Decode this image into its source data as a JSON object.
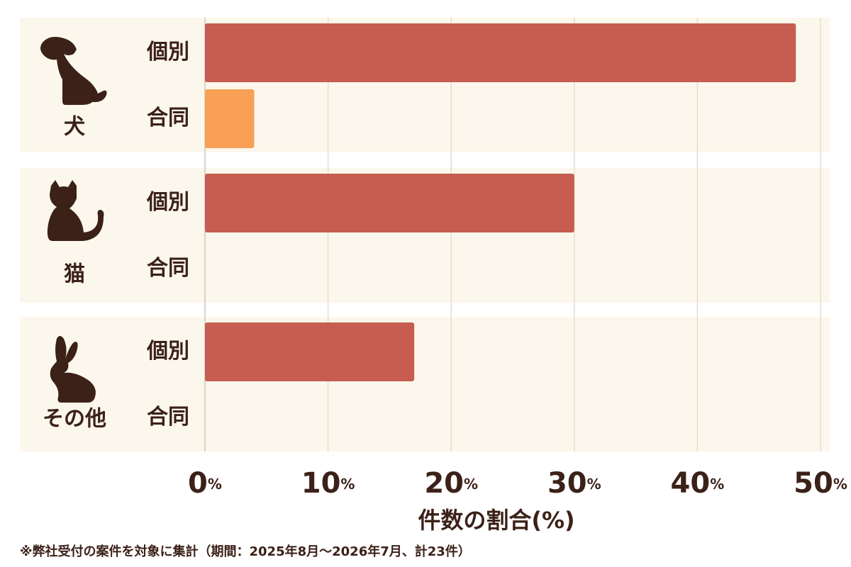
{
  "chart_data": {
    "type": "bar",
    "orientation": "horizontal",
    "categories": [
      "犬",
      "猫",
      "その他"
    ],
    "series": [
      {
        "name": "個別",
        "color": "#c65d50",
        "values": [
          48,
          30,
          17
        ]
      },
      {
        "name": "合同",
        "color": "#f8a055",
        "values": [
          4,
          null,
          null
        ]
      }
    ],
    "xlim": [
      0,
      50
    ],
    "xticks": [
      {
        "value": 0,
        "label": "0%"
      },
      {
        "value": 10,
        "label": "10%"
      },
      {
        "value": 20,
        "label": "20%"
      },
      {
        "value": 30,
        "label": "30%"
      },
      {
        "value": 40,
        "label": "40%"
      },
      {
        "value": 50,
        "label": "50%"
      }
    ],
    "xlabel": "件数の割合(%)",
    "grid": true,
    "footnote": "※弊社受付の案件を対象に集計（期間：2025年8月～2026年7月、計23件）"
  }
}
